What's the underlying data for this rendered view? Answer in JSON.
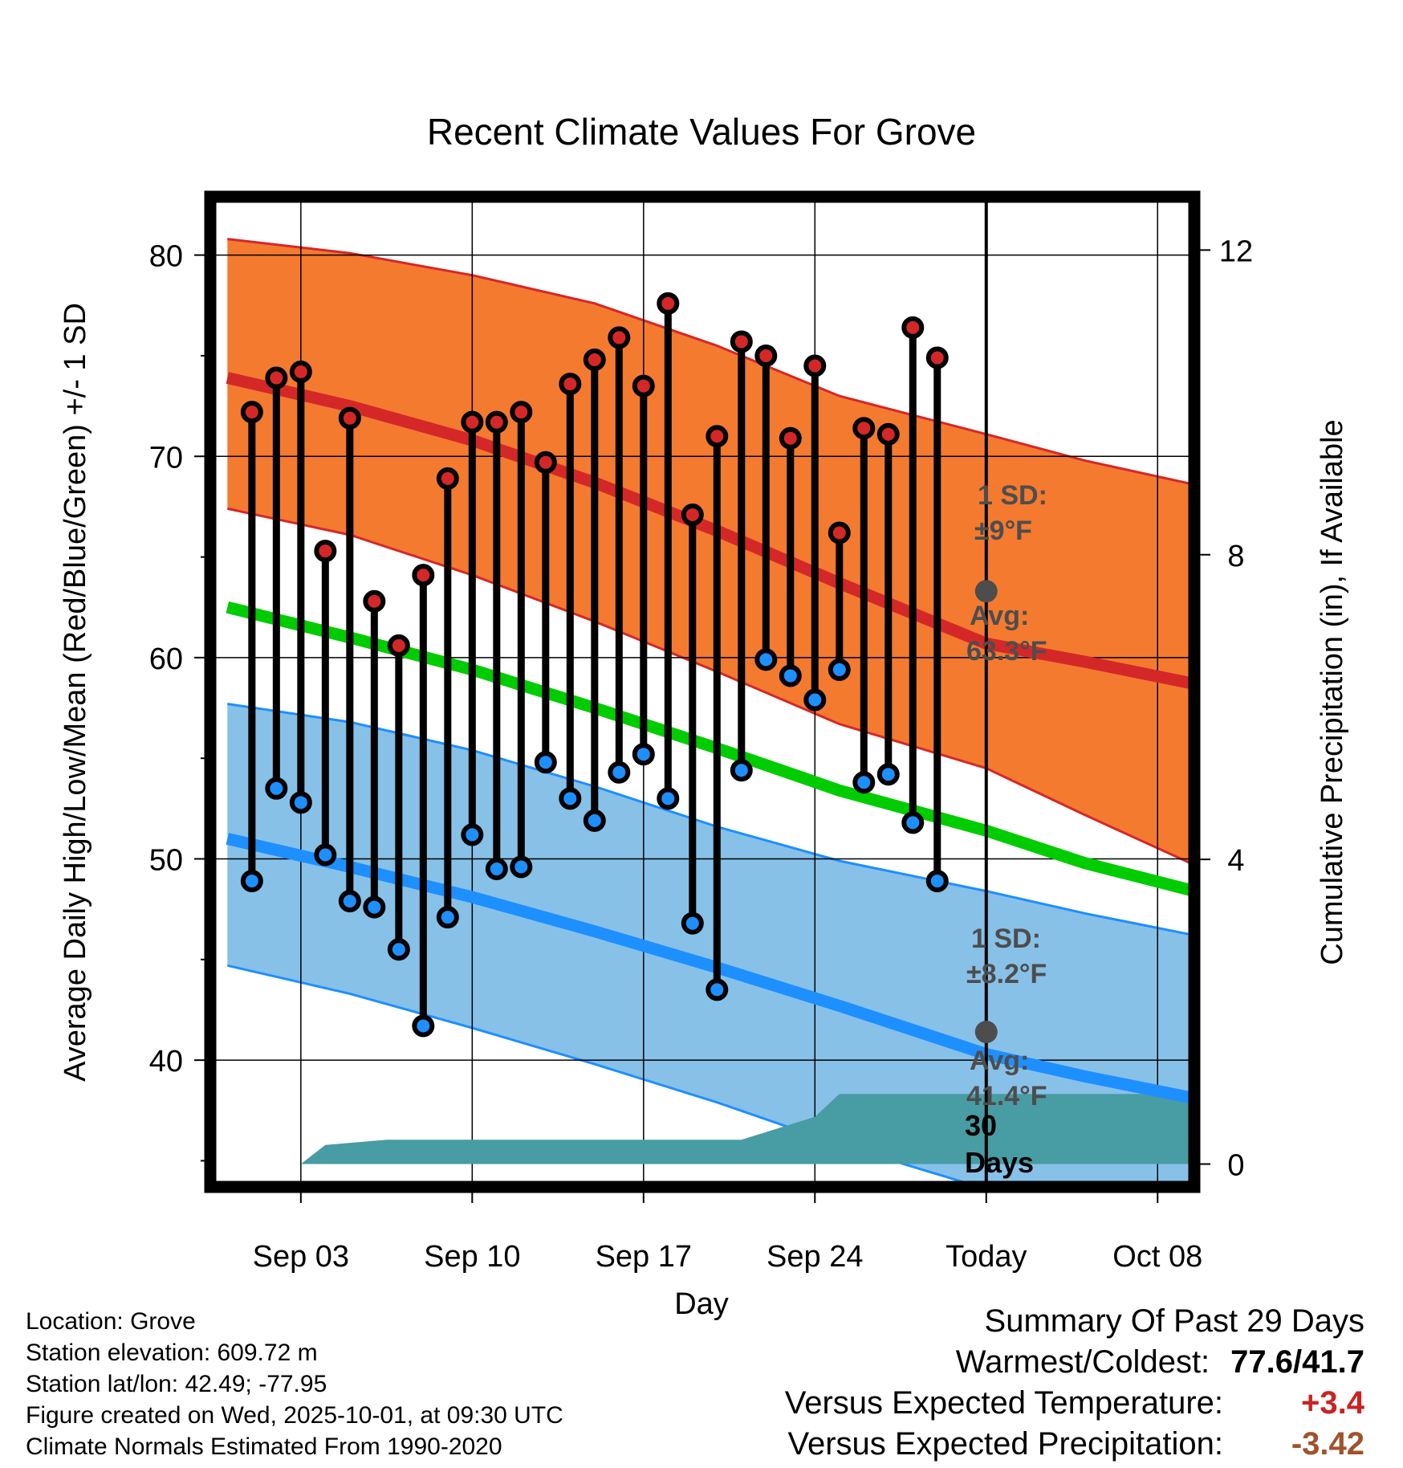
{
  "chart_data": {
    "type": "line",
    "title": "Recent Climate Values For Grove",
    "xlabel": "Day",
    "ylabel": "Average Daily High/Low/Mean (Red/Blue/Green) +/- 1 SD",
    "y2label": "Cumulative Precipitation (in), If Available",
    "ylim": [
      33.7,
      82.9
    ],
    "y_ticks": [
      40,
      50,
      60,
      70,
      80
    ],
    "y2lim": [
      -0.3,
      12.7
    ],
    "y2_ticks": [
      0,
      4,
      8,
      12
    ],
    "xlim": [
      -0.7,
      39.5
    ],
    "x_ticks": [
      {
        "day": 3,
        "label": "Sep 03"
      },
      {
        "day": 10,
        "label": "Sep 10"
      },
      {
        "day": 17,
        "label": "Sep 17"
      },
      {
        "day": 24,
        "label": "Sep 24"
      },
      {
        "day": 31,
        "label": "Today"
      },
      {
        "day": 38,
        "label": "Oct 08"
      }
    ],
    "today_day": 31,
    "normals": {
      "days": [
        0,
        5,
        10,
        15,
        20,
        25,
        31,
        35,
        39.5
      ],
      "high_mean": [
        73.9,
        72.5,
        70.8,
        68.7,
        66.3,
        63.7,
        60.7,
        59.8,
        58.7
      ],
      "high_upper": [
        80.8,
        80.1,
        79.0,
        77.6,
        75.5,
        73.0,
        71.1,
        69.8,
        68.6
      ],
      "high_lower": [
        67.4,
        66.1,
        64.1,
        61.8,
        59.3,
        56.7,
        54.5,
        52.2,
        49.7
      ],
      "low_mean": [
        51.0,
        49.6,
        48.1,
        46.4,
        44.6,
        42.7,
        40.3,
        39.2,
        38.1
      ],
      "low_upper": [
        57.7,
        56.8,
        55.4,
        53.6,
        51.6,
        49.9,
        48.4,
        47.3,
        46.2
      ],
      "low_lower": [
        44.7,
        43.3,
        41.6,
        39.8,
        37.9,
        35.8,
        33.6,
        33.0,
        32.4
      ],
      "daily_mean": [
        62.5,
        61.0,
        59.4,
        57.5,
        55.5,
        53.4,
        51.4,
        49.8,
        48.4
      ]
    },
    "series": [
      {
        "name": "Daily High",
        "color": "#d62728",
        "days": [
          1,
          2,
          3,
          4,
          5,
          6,
          7,
          8,
          9,
          10,
          11,
          12,
          13,
          14,
          15,
          16,
          17,
          18,
          19,
          20,
          21,
          22,
          23,
          24,
          25,
          26,
          27,
          28,
          29
        ],
        "values": [
          72.2,
          73.9,
          74.2,
          65.3,
          71.9,
          62.8,
          60.6,
          64.1,
          68.9,
          71.7,
          71.7,
          72.2,
          69.7,
          73.6,
          74.8,
          75.9,
          73.5,
          77.6,
          67.1,
          71.0,
          75.7,
          75.0,
          70.9,
          74.5,
          66.2,
          71.4,
          71.1,
          76.4,
          74.9
        ]
      },
      {
        "name": "Daily Low",
        "color": "#1e8fff",
        "days": [
          1,
          2,
          3,
          4,
          5,
          6,
          7,
          8,
          9,
          10,
          11,
          12,
          13,
          14,
          15,
          16,
          17,
          18,
          19,
          20,
          21,
          22,
          23,
          24,
          25,
          26,
          27,
          28,
          29
        ],
        "values": [
          48.9,
          53.5,
          52.8,
          50.2,
          47.9,
          47.6,
          45.5,
          41.7,
          47.1,
          51.2,
          49.5,
          49.6,
          54.8,
          53.0,
          51.9,
          54.3,
          55.2,
          53.0,
          46.8,
          43.5,
          54.4,
          59.9,
          59.1,
          57.9,
          59.4,
          53.8,
          54.2,
          51.8,
          48.9
        ]
      }
    ],
    "precipitation": {
      "days": [
        -0.7,
        0.3,
        1.5,
        3.0,
        4.0,
        6.5,
        9.0,
        12.0,
        14.0,
        16.0,
        18.0,
        20.0,
        21.0,
        24.0,
        25.0,
        27.0,
        29.0,
        31.0,
        39.5
      ],
      "values": [
        0.0,
        0.0,
        0.0,
        0.0,
        0.25,
        0.32,
        0.32,
        0.32,
        0.32,
        0.32,
        0.32,
        0.32,
        0.32,
        0.62,
        0.92,
        0.92,
        0.92,
        0.92,
        0.92
      ]
    },
    "annotations": {
      "high_sd_label": "1 SD:",
      "high_sd_value": "±9°F",
      "high_avg_label": "Avg:",
      "high_avg_value": "63.3°F",
      "high_avg": 63.3,
      "low_sd_label": "1 SD:",
      "low_sd_value": "±8.2°F",
      "low_avg_label": "Avg:",
      "low_avg_value": "41.4°F",
      "low_avg": 41.4,
      "days_count": "30",
      "days_word": "Days"
    },
    "colors": {
      "high_band": "#f47a30",
      "high_band_edge": "#d62728",
      "high_mean": "#d42828",
      "low_band": "#87c1e8",
      "low_band_edge": "#1e8fff",
      "low_mean": "#1e8fff",
      "daily_mean": "#00cc00",
      "precip": "#489ca4",
      "marker_dark": "#4d4d4d"
    }
  },
  "info": {
    "location": "Location: Grove",
    "elevation": "Station elevation: 609.72 m",
    "latlon": "Station lat/lon: 42.49; -77.95",
    "created": "Figure created on Wed, 2025-10-01, at 09:30 UTC",
    "normals": "Climate Normals Estimated From 1990-2020"
  },
  "summary": {
    "heading": "Summary Of Past 29 Days",
    "warm_cold_label": "Warmest/Coldest:",
    "warm_cold_value": "77.6/41.7",
    "temp_label": "Versus Expected Temperature:",
    "temp_value": "+3.4",
    "temp_color": "#cc2222",
    "precip_label": "Versus Expected Precipitation:",
    "precip_value": "-3.42",
    "precip_color": "#a0522d"
  }
}
